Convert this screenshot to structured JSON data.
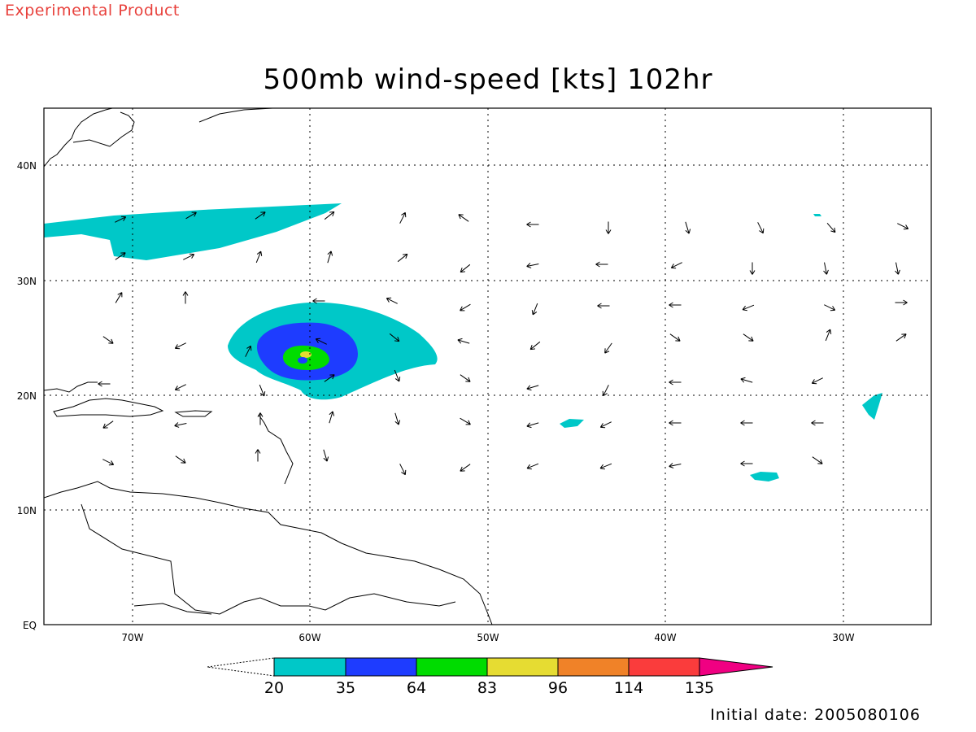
{
  "header": {
    "experimental_label": "Experimental Product",
    "title": "500mb wind-speed [kts] 102hr",
    "initial_date": "Initial date: 2005080106"
  },
  "map": {
    "lon_range": [
      -75,
      -25
    ],
    "lat_range": [
      0,
      45
    ],
    "x_ticks": [
      {
        "lon": -70,
        "label": "70W"
      },
      {
        "lon": -60,
        "label": "60W"
      },
      {
        "lon": -50,
        "label": "50W"
      },
      {
        "lon": -40,
        "label": "40W"
      },
      {
        "lon": -30,
        "label": "30W"
      }
    ],
    "y_ticks": [
      {
        "lat": 40,
        "label": "40N"
      },
      {
        "lat": 30,
        "label": "30N"
      },
      {
        "lat": 20,
        "label": "20N"
      },
      {
        "lat": 10,
        "label": "10N"
      },
      {
        "lat": 0,
        "label": "EQ"
      }
    ],
    "grid": "dotted",
    "features": [
      "hurricane-vortex near 23N 60W",
      "wind vectors"
    ]
  },
  "colorbar": {
    "labels": [
      "20",
      "35",
      "64",
      "83",
      "96",
      "114",
      "135"
    ],
    "colors": [
      "#00c8c8",
      "#1e3cff",
      "#00dc00",
      "#e6dc32",
      "#f08228",
      "#fa3c3c",
      "#f00082"
    ]
  }
}
